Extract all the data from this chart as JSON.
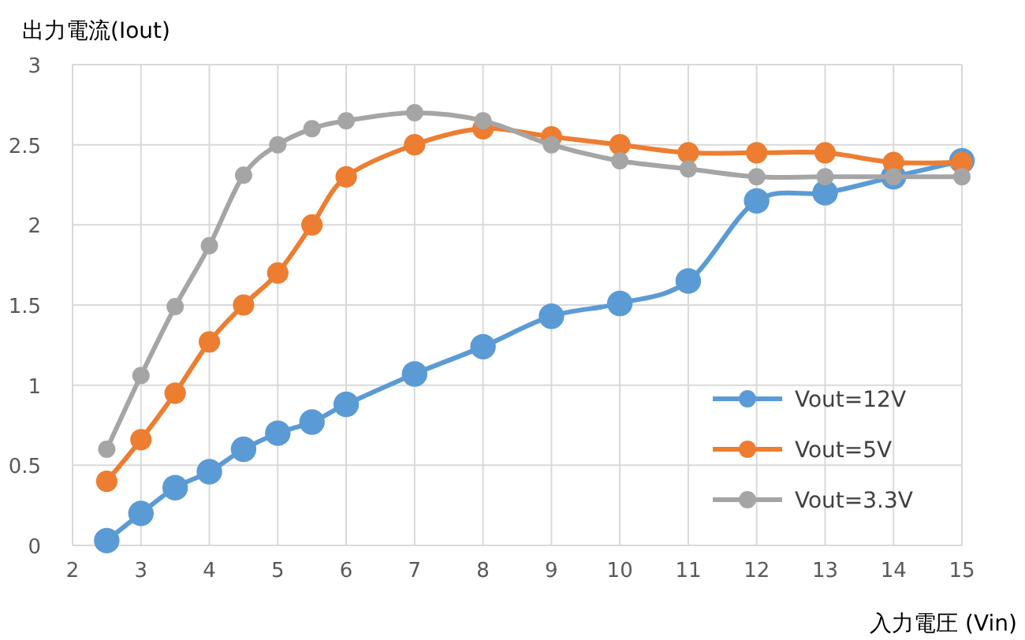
{
  "chart_data": {
    "type": "line",
    "xlabel": "入力電圧 (Vin)",
    "ylabel": "出力電流(Iout)",
    "xlim": [
      2,
      15
    ],
    "xticks": [
      2,
      3,
      4,
      5,
      6,
      7,
      8,
      9,
      10,
      11,
      12,
      13,
      14,
      15
    ],
    "ylim": [
      0,
      3
    ],
    "yticks": [
      0,
      0.5,
      1,
      1.5,
      2,
      2.5,
      3
    ],
    "grid": true,
    "legend": "bottom right",
    "marker": "circle",
    "line_style": "solid",
    "x": [
      2.5,
      3,
      3.5,
      4,
      4.5,
      5,
      5.5,
      6,
      7,
      8,
      9,
      10,
      11,
      12,
      13,
      14,
      15
    ],
    "series": [
      {
        "name": "Vout=12V",
        "color": "#5b9bd5",
        "values": [
          0.03,
          0.2,
          0.36,
          0.46,
          0.6,
          0.7,
          0.77,
          0.88,
          1.07,
          1.24,
          1.43,
          1.51,
          1.65,
          2.15,
          2.2,
          2.3,
          2.4
        ]
      },
      {
        "name": "Vout=5V",
        "color": "#ed7d31",
        "values": [
          0.4,
          0.66,
          0.95,
          1.27,
          1.5,
          1.7,
          2.0,
          2.3,
          2.5,
          2.6,
          2.55,
          2.5,
          2.45,
          2.45,
          2.45,
          2.39,
          2.39
        ]
      },
      {
        "name": "Vout=3.3V",
        "color": "#a5a5a5",
        "values": [
          0.6,
          1.06,
          1.49,
          1.87,
          2.31,
          2.5,
          2.6,
          2.65,
          2.7,
          2.65,
          2.5,
          2.4,
          2.35,
          2.3,
          2.3,
          2.3,
          2.3
        ]
      }
    ]
  }
}
